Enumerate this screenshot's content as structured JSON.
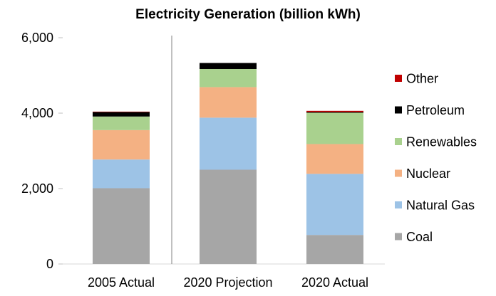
{
  "chart_data": {
    "type": "bar",
    "stacked": true,
    "title": "Electricity Generation (billion kWh)",
    "xlabel": "",
    "ylabel": "",
    "ylim": [
      0,
      6000
    ],
    "yticks": [
      "0",
      "2,000",
      "4,000",
      "6,000"
    ],
    "yticks_values": [
      0,
      2000,
      4000,
      6000
    ],
    "grid": false,
    "legend_position": "right",
    "categories": [
      "2005 Actual",
      "2020 Projection",
      "2020 Actual"
    ],
    "series": [
      {
        "name": "Coal",
        "color": "#a6a6a6",
        "values": [
          2010,
          2500,
          770
        ]
      },
      {
        "name": "Natural Gas",
        "color": "#9dc3e6",
        "values": [
          760,
          1380,
          1620
        ]
      },
      {
        "name": "Nuclear",
        "color": "#f4b183",
        "values": [
          780,
          810,
          790
        ]
      },
      {
        "name": "Renewables",
        "color": "#a9d18e",
        "values": [
          360,
          480,
          830
        ]
      },
      {
        "name": "Petroleum",
        "color": "#000000",
        "values": [
          120,
          160,
          20
        ]
      },
      {
        "name": "Other",
        "color": "#c00000",
        "values": [
          10,
          0,
          30
        ]
      }
    ],
    "legend_order": [
      "Other",
      "Petroleum",
      "Renewables",
      "Nuclear",
      "Natural Gas",
      "Coal"
    ],
    "separator_after_category": 0
  }
}
